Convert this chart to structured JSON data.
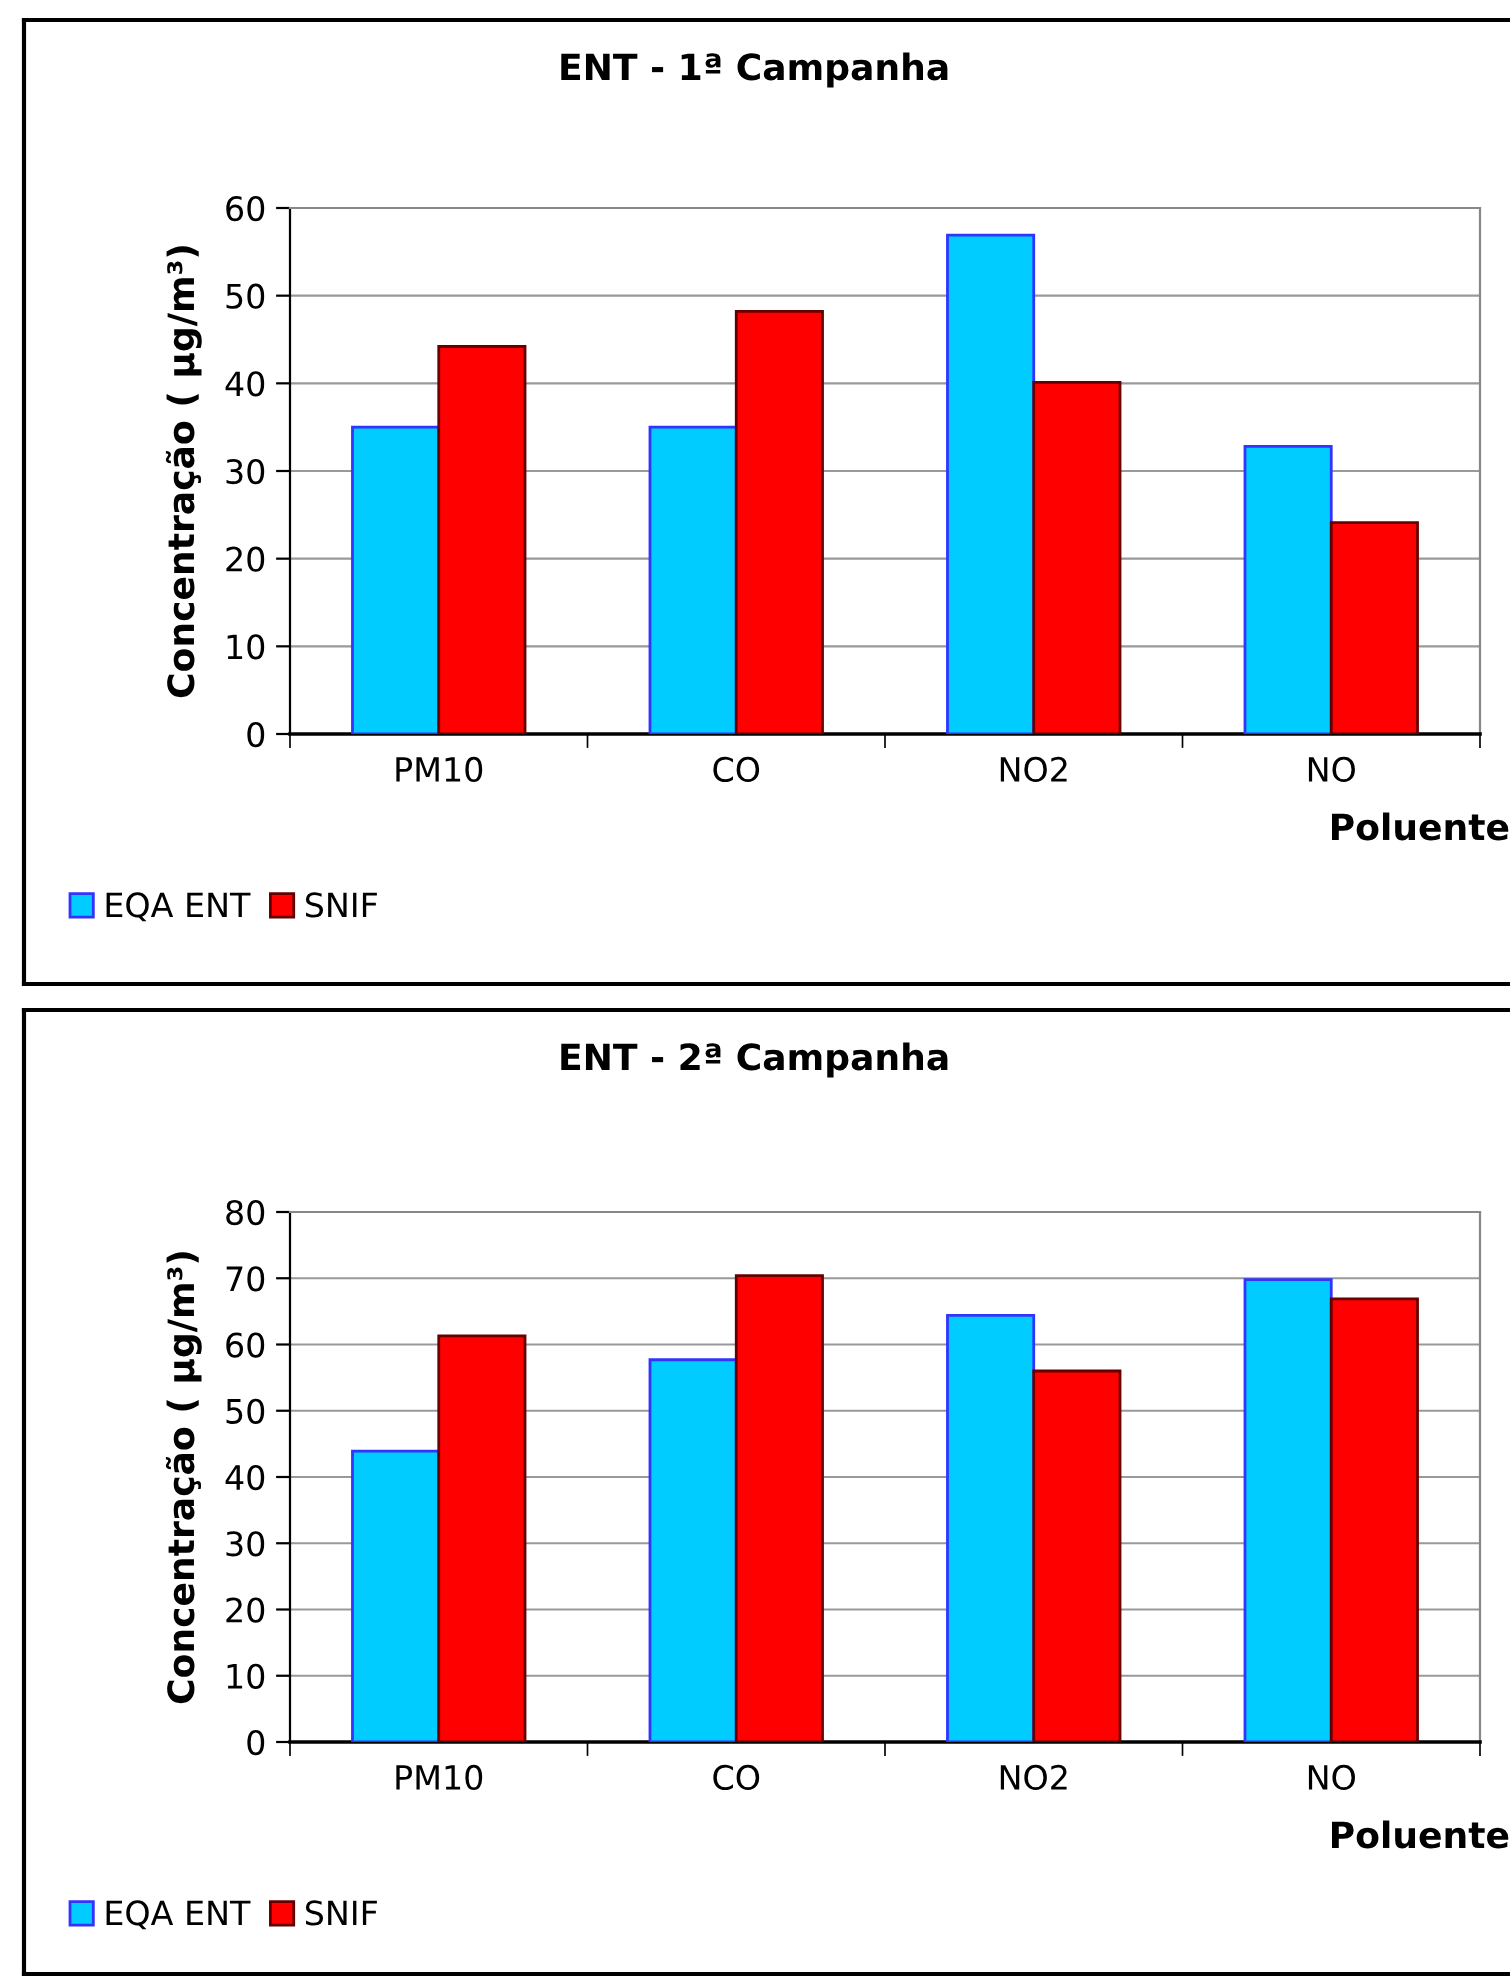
{
  "chart_data": [
    {
      "type": "bar",
      "title": "ENT - 1ª Campanha",
      "xlabel": "Poluente",
      "ylabel": "Concentração ( µg/m³)",
      "categories": [
        "PM10",
        "CO",
        "NO2",
        "NO"
      ],
      "ylim": [
        0,
        60
      ],
      "yticks": [
        0,
        10,
        20,
        30,
        40,
        50,
        60
      ],
      "grid": "y",
      "legend": "bottom left",
      "series": [
        {
          "name": "EQA ENT",
          "color": "#00ccff",
          "values": [
            35,
            35,
            56.9,
            32.8
          ]
        },
        {
          "name": "SNIF",
          "color": "#ff0000",
          "values": [
            44.2,
            48.2,
            40.1,
            24.1
          ]
        }
      ]
    },
    {
      "type": "bar",
      "title": "ENT - 2ª Campanha",
      "xlabel": "Poluente",
      "ylabel": "Concentração ( µg/m³)",
      "categories": [
        "PM10",
        "CO",
        "NO2",
        "NO"
      ],
      "ylim": [
        0,
        80
      ],
      "yticks": [
        0,
        10,
        20,
        30,
        40,
        50,
        60,
        70,
        80
      ],
      "grid": "y",
      "legend": "bottom left",
      "series": [
        {
          "name": "EQA ENT",
          "color": "#00ccff",
          "values": [
            43.9,
            57.7,
            64.4,
            69.8
          ]
        },
        {
          "name": "SNIF",
          "color": "#ff0000",
          "values": [
            61.3,
            70.4,
            56.0,
            66.9
          ]
        }
      ]
    }
  ]
}
